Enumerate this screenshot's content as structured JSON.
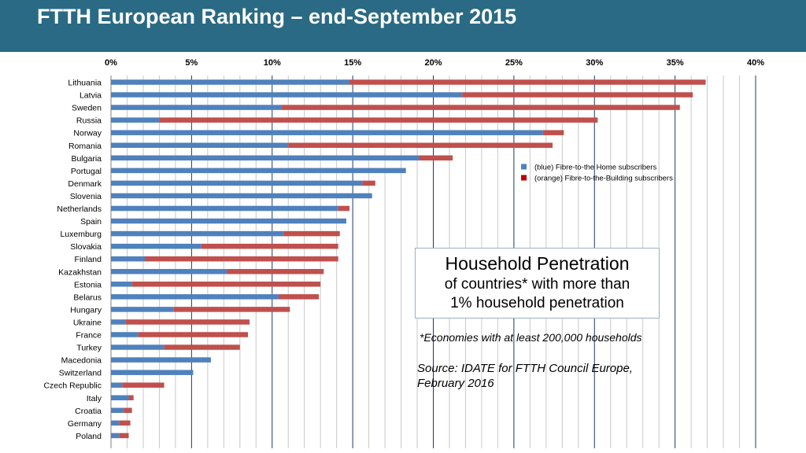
{
  "header": {
    "title": "FTTH European Ranking – end-September 2015"
  },
  "colors": {
    "header_bg": "#2a6a84",
    "ftth": "#4f81bd",
    "fttb": "#c0504d",
    "grid": "#c8c8c8",
    "major_grid": "#1f3864"
  },
  "chart_data": {
    "type": "bar",
    "orientation": "horizontal",
    "stacked": true,
    "xlim": [
      0,
      40
    ],
    "x_ticks": [
      "0%",
      "5%",
      "10%",
      "15%",
      "20%",
      "25%",
      "30%",
      "35%",
      "40%"
    ],
    "grid": true,
    "legend_position": "right-middle",
    "categories": [
      "Lithuania",
      "Latvia",
      "Sweden",
      "Russia",
      "Norway",
      "Romania",
      "Bulgaria",
      "Portugal",
      "Denmark",
      "Slovenia",
      "Netherlands",
      "Spain",
      "Luxemburg",
      "Slovakia",
      "Finland",
      "Kazakhstan",
      "Estonia",
      "Belarus",
      "Hungary",
      "Ukraine",
      "France",
      "Turkey",
      "Macedonia",
      "Switzerland",
      "Czech Republic",
      "Italy",
      "Croatia",
      "Germany",
      "Poland"
    ],
    "series": [
      {
        "name": "(blue) Fibre-to-the Home subscribers",
        "color": "#4f81bd",
        "values": [
          14.8,
          21.8,
          10.6,
          3.0,
          26.8,
          11.0,
          19.1,
          18.3,
          15.6,
          16.2,
          14.1,
          14.6,
          10.7,
          5.6,
          2.1,
          7.2,
          1.3,
          10.4,
          3.9,
          0.9,
          1.7,
          3.3,
          6.2,
          5.1,
          0.7,
          1.1,
          0.8,
          0.5,
          0.5
        ]
      },
      {
        "name": "(orange) Fibre-to-the-Building subscribers",
        "color": "#c00000",
        "values": [
          22.1,
          14.3,
          24.7,
          27.2,
          1.3,
          16.4,
          2.1,
          0,
          0.8,
          0,
          0.7,
          0,
          3.5,
          8.5,
          12.0,
          6.0,
          11.7,
          2.5,
          7.2,
          7.7,
          6.8,
          4.7,
          0,
          0,
          2.6,
          0.3,
          0.5,
          0.7,
          0.6
        ]
      }
    ]
  },
  "info": {
    "line1": "Household Penetration",
    "line2": "of countries* with more than",
    "line3": "1% household penetration",
    "footnote": "*Economies with at least 200,000 households",
    "source_line1": "Source: IDATE for FTTH Council Europe,",
    "source_line2": "February 2016"
  }
}
